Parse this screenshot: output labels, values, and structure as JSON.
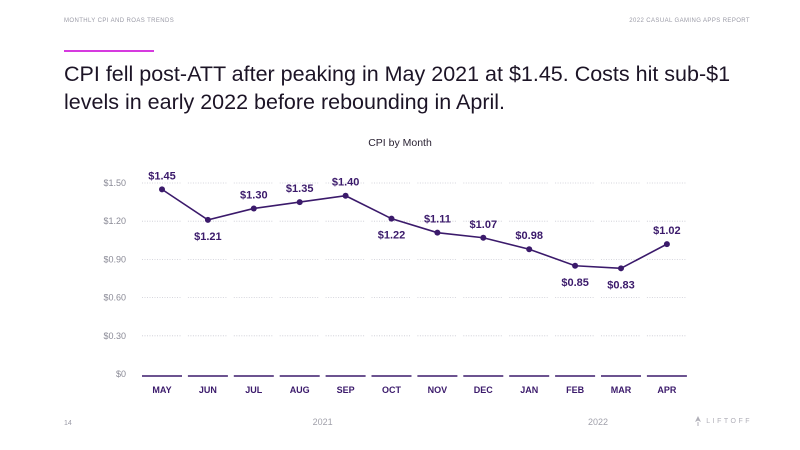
{
  "header": {
    "section_label": "MONTHLY CPI AND ROAS TRENDS",
    "report_label": "2022 CASUAL GAMING APPS REPORT"
  },
  "headline": "CPI fell post-ATT after peaking in May 2021 at $1.45. Costs hit sub-$1 levels in early 2022 before rebounding in April.",
  "footer": {
    "page_number": "14",
    "logo_text": "LIFTOFF"
  },
  "colors": {
    "accent": "#d63adf",
    "series": "#3b1a6b",
    "axis_text": "#8a8a96",
    "grid": "#c9c9d2"
  },
  "chart_data": {
    "type": "line",
    "title": "CPI by Month",
    "categories": [
      "MAY",
      "JUN",
      "JUL",
      "AUG",
      "SEP",
      "OCT",
      "NOV",
      "DEC",
      "JAN",
      "FEB",
      "MAR",
      "APR"
    ],
    "series": [
      {
        "name": "CPI",
        "values": [
          1.45,
          1.21,
          1.3,
          1.35,
          1.4,
          1.22,
          1.11,
          1.07,
          0.98,
          0.85,
          0.83,
          1.02
        ],
        "data_labels": [
          "$1.45",
          "$1.21",
          "$1.30",
          "$1.35",
          "$1.40",
          "$1.22",
          "$1.11",
          "$1.07",
          "$0.98",
          "$0.85",
          "$0.83",
          "$1.02"
        ],
        "label_side": [
          "above",
          "below",
          "above",
          "above",
          "above",
          "below",
          "above",
          "above",
          "above",
          "below",
          "below",
          "above"
        ]
      }
    ],
    "year_groups": [
      {
        "label": "2021",
        "from": 0,
        "to": 7
      },
      {
        "label": "2022",
        "from": 8,
        "to": 11
      }
    ],
    "y_ticks": [
      0,
      0.3,
      0.6,
      0.9,
      1.2,
      1.5
    ],
    "y_tick_labels": [
      "$0",
      "$0.30",
      "$0.60",
      "$0.90",
      "$1.20",
      "$1.50"
    ],
    "ylim": [
      0,
      1.5
    ],
    "xlabel": "",
    "ylabel": "",
    "grid": true
  }
}
